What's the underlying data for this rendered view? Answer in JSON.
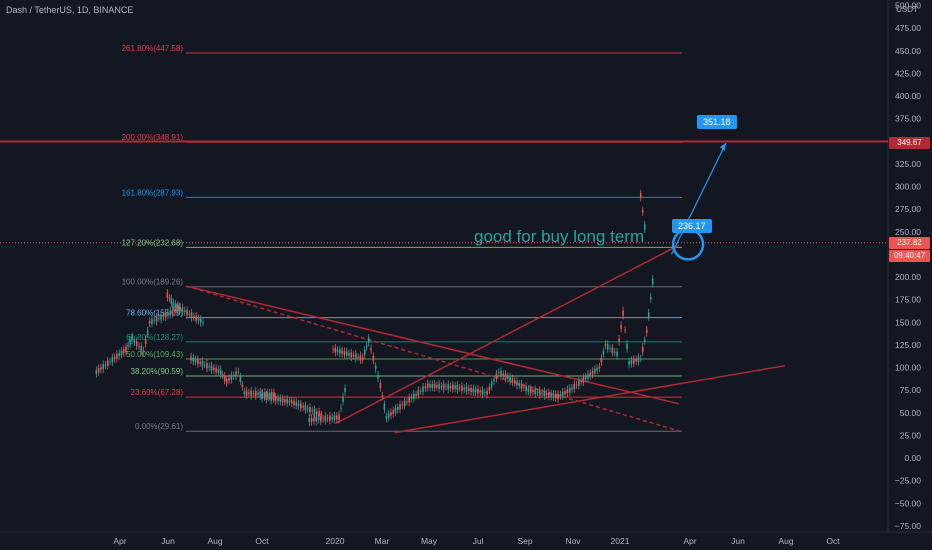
{
  "header": {
    "symbol": "Dash / TetherUS, 1D, BINANCE",
    "currency": "USDT"
  },
  "colors": {
    "background": "#131722",
    "up": "#26a69a",
    "down": "#ef5350",
    "trendline": "#b22833",
    "arrow": "#2196f3"
  },
  "price_labels": {
    "horizontal_line": "349.67",
    "current_price": "237.82",
    "countdown": "09:40:47"
  },
  "annotations": {
    "target": "351.18",
    "entry": "236.17",
    "note": "good for buy long term"
  },
  "chart_data": {
    "type": "candlestick",
    "x_tick_labels": [
      "Apr",
      "Jun",
      "Aug",
      "Oct",
      "2020",
      "Mar",
      "May",
      "Jul",
      "Sep",
      "Nov",
      "2021",
      "Apr",
      "Jun",
      "Aug",
      "Oct"
    ],
    "y_tick_labels": [
      "500.00",
      "475.00",
      "450.00",
      "425.00",
      "400.00",
      "375.00",
      "350.00",
      "325.00",
      "300.00",
      "275.00",
      "250.00",
      "225.00",
      "200.00",
      "175.00",
      "150.00",
      "125.00",
      "100.00",
      "75.00",
      "50.00",
      "25.00",
      "0.00",
      "−25.00",
      "−50.00",
      "−75.00"
    ],
    "ylim": [
      -85,
      505
    ],
    "fib_levels": [
      {
        "label": "0.00%(29.61)",
        "value": 29.61,
        "color": "#787b86"
      },
      {
        "label": "23.60%(67.28)",
        "value": 67.28,
        "color": "#f23645"
      },
      {
        "label": "38.20%(90.59)",
        "value": 90.59,
        "color": "#81c784"
      },
      {
        "label": "50.00%(109.43)",
        "value": 109.43,
        "color": "#4caf50"
      },
      {
        "label": "61.80%(128.27)",
        "value": 128.27,
        "color": "#089981"
      },
      {
        "label": "78.60%(155.09)",
        "value": 155.09,
        "color": "#64b5f6"
      },
      {
        "label": "100.00%(189.26)",
        "value": 189.26,
        "color": "#787b86"
      },
      {
        "label": "127.20%(232.68)",
        "value": 232.68,
        "color": "#81c784"
      },
      {
        "label": "161.80%(287.93)",
        "value": 287.93,
        "color": "#2196f3"
      },
      {
        "label": "200.00%(348.91)",
        "value": 348.91,
        "color": "#f23645"
      },
      {
        "label": "261.80%(447.58)",
        "value": 447.58,
        "color": "#f23645"
      }
    ],
    "horizontal_line": 349.67,
    "current_price": 237.82,
    "price_series": [
      [
        "Mar 2019",
        95
      ],
      [
        "Apr 2019",
        120
      ],
      [
        "Apr 2019",
        132
      ],
      [
        "May 2019",
        118
      ],
      [
        "May 2019",
        150
      ],
      [
        "Jun 2019",
        165
      ],
      [
        "Jun 2019",
        180
      ],
      [
        "Jun 2019",
        170
      ],
      [
        "Jul 2019",
        150
      ],
      [
        "Jul 2019",
        110
      ],
      [
        "Aug 2019",
        95
      ],
      [
        "Aug 2019",
        85
      ],
      [
        "Sep 2019",
        95
      ],
      [
        "Sep 2019",
        72
      ],
      [
        "Oct 2019",
        70
      ],
      [
        "Oct 2019",
        68
      ],
      [
        "Nov 2019",
        62
      ],
      [
        "Dec 2019",
        48
      ],
      [
        "Dec 2019",
        42
      ],
      [
        "Jan 2020",
        45
      ],
      [
        "Jan 2020",
        75
      ],
      [
        "Jan 2020",
        120
      ],
      [
        "Feb 2020",
        110
      ],
      [
        "Feb 2020",
        130
      ],
      [
        "Mar 2020",
        80
      ],
      [
        "Mar 2020",
        45
      ],
      [
        "Apr 2020",
        70
      ],
      [
        "May 2020",
        80
      ],
      [
        "Jun 2020",
        78
      ],
      [
        "Jul 2020",
        72
      ],
      [
        "Aug 2020",
        95
      ],
      [
        "Sep 2020",
        75
      ],
      [
        "Oct 2020",
        68
      ],
      [
        "Nov 2020",
        75
      ],
      [
        "Dec 2020",
        100
      ],
      [
        "Dec 2020",
        125
      ],
      [
        "Jan 2021",
        115
      ],
      [
        "Jan 2021",
        160
      ],
      [
        "Jan 2021",
        105
      ],
      [
        "Feb 2021",
        110
      ],
      [
        "Feb 2021",
        140
      ],
      [
        "Feb 2021",
        195
      ],
      [
        "Feb 2021",
        290
      ],
      [
        "Feb 2021",
        237.82
      ]
    ]
  }
}
